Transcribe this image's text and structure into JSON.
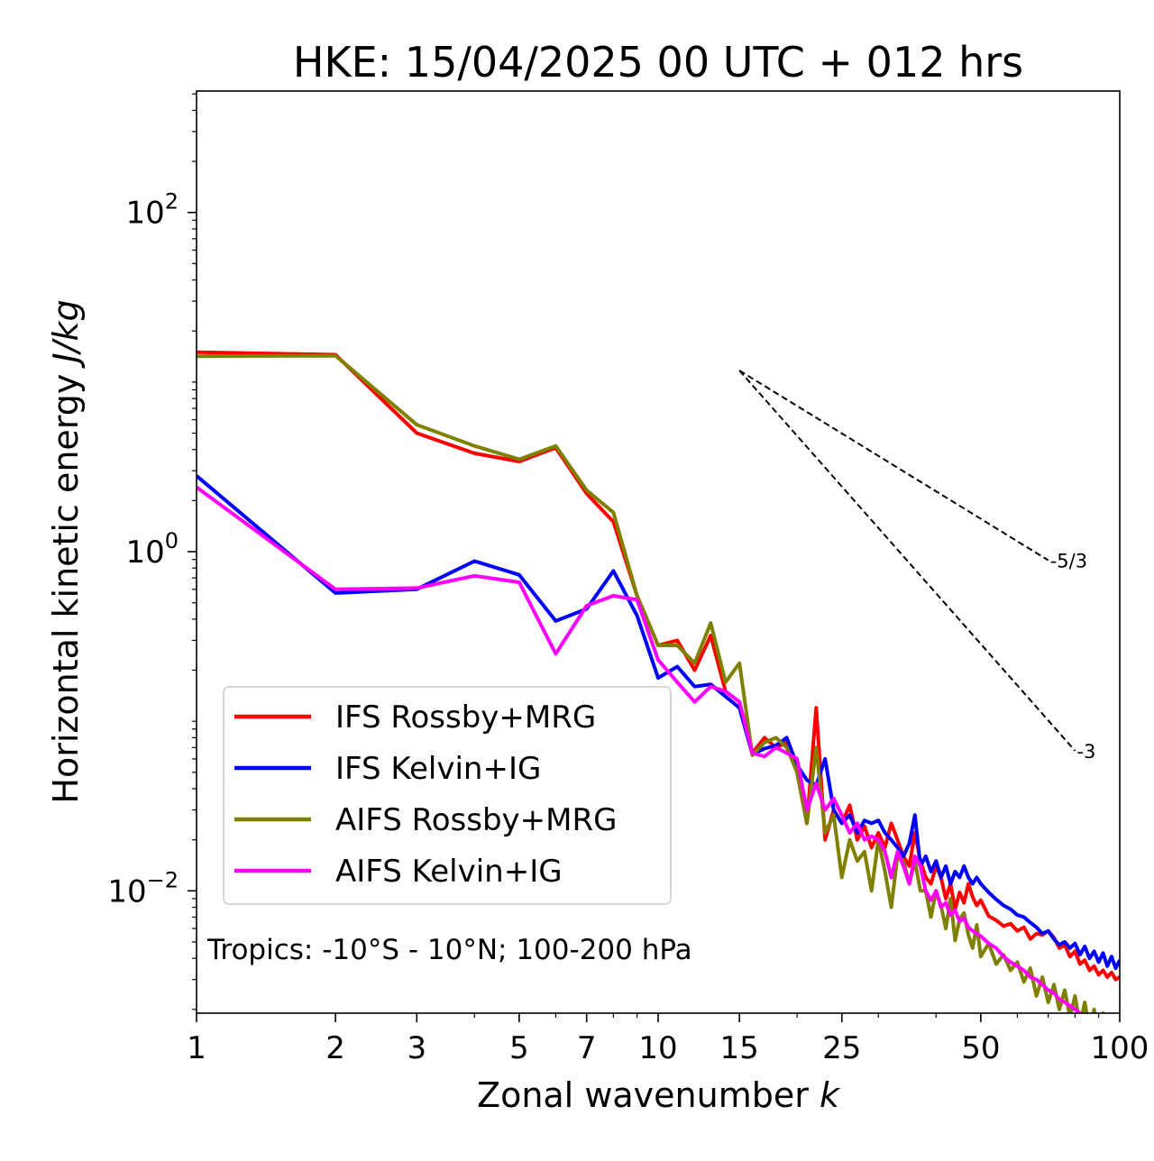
{
  "chart_data": {
    "type": "line",
    "title": "HKE: 15/04/2025 00 UTC + 012 hrs",
    "xlabel": "Zonal wavenumber",
    "xlabel_symbol": "k",
    "ylabel": "Horizontal kinetic energy",
    "ylabel_unit": "J/kg",
    "x_scale": "log",
    "y_scale": "log",
    "xlim": [
      1,
      100
    ],
    "ylim": [
      0.0019,
      520
    ],
    "x_ticks": [
      {
        "value": 1,
        "label": "1"
      },
      {
        "value": 2,
        "label": "2"
      },
      {
        "value": 3,
        "label": "3"
      },
      {
        "value": 5,
        "label": "5"
      },
      {
        "value": 7,
        "label": "7"
      },
      {
        "value": 10,
        "label": "10"
      },
      {
        "value": 15,
        "label": "15"
      },
      {
        "value": 25,
        "label": "25"
      },
      {
        "value": 50,
        "label": "50"
      },
      {
        "value": 100,
        "label": "100"
      }
    ],
    "y_ticks": [
      {
        "value": 0.01,
        "base": "10",
        "exp": "−2"
      },
      {
        "value": 1,
        "base": "10",
        "exp": "0"
      },
      {
        "value": 100,
        "base": "10",
        "exp": "2"
      }
    ],
    "annotation": "Tropics: -10°S - 10°N; 100-200 hPa",
    "reference_lines": [
      {
        "label": "-5/3",
        "x0": 15,
        "y0": 11.7,
        "x1": 70,
        "y1": 0.89
      },
      {
        "label": "-3",
        "x0": 15,
        "y0": 11.7,
        "x1": 80,
        "y1": 0.067
      }
    ],
    "legend_position": "lower-left",
    "series": [
      {
        "name": "IFS Rossby+MRG",
        "color": "#ff0000",
        "x": [
          1,
          2,
          3,
          4,
          5,
          6,
          7,
          8,
          9,
          10,
          11,
          12,
          13,
          14,
          15,
          16,
          17,
          18,
          19,
          20,
          21,
          22,
          23,
          24,
          25,
          26,
          27,
          28,
          29,
          30,
          31,
          32,
          33,
          34,
          35,
          36,
          37,
          38,
          39,
          40,
          41,
          42,
          43,
          44,
          45,
          46,
          47,
          48,
          49,
          50,
          52,
          54,
          56,
          58,
          60,
          62,
          64,
          66,
          68,
          70,
          72,
          74,
          76,
          78,
          80,
          82,
          84,
          86,
          88,
          90,
          92,
          94,
          96,
          98,
          100
        ],
        "y": [
          15,
          14.5,
          5,
          3.8,
          3.4,
          4.1,
          2.2,
          1.5,
          0.55,
          0.28,
          0.3,
          0.2,
          0.32,
          0.15,
          0.13,
          0.065,
          0.08,
          0.07,
          0.075,
          0.05,
          0.025,
          0.12,
          0.02,
          0.03,
          0.025,
          0.032,
          0.02,
          0.024,
          0.018,
          0.022,
          0.018,
          0.025,
          0.02,
          0.016,
          0.014,
          0.022,
          0.015,
          0.012,
          0.011,
          0.014,
          0.012,
          0.009,
          0.011,
          0.0078,
          0.0098,
          0.0085,
          0.011,
          0.0092,
          0.0082,
          0.0088,
          0.0071,
          0.0067,
          0.0062,
          0.0064,
          0.0058,
          0.0061,
          0.0052,
          0.0056,
          0.0055,
          0.0058,
          0.0053,
          0.0046,
          0.0048,
          0.0041,
          0.0044,
          0.0037,
          0.0039,
          0.0034,
          0.0036,
          0.0032,
          0.0034,
          0.0031,
          0.0033,
          0.003,
          0.0031
        ]
      },
      {
        "name": "IFS Kelvin+IG",
        "color": "#0000ff",
        "x": [
          1,
          2,
          3,
          4,
          5,
          6,
          7,
          8,
          9,
          10,
          11,
          12,
          13,
          14,
          15,
          16,
          17,
          18,
          19,
          20,
          21,
          22,
          23,
          24,
          25,
          26,
          27,
          28,
          29,
          30,
          31,
          32,
          33,
          34,
          35,
          36,
          37,
          38,
          39,
          40,
          41,
          42,
          43,
          44,
          45,
          46,
          47,
          48,
          49,
          50,
          52,
          54,
          56,
          58,
          60,
          62,
          64,
          66,
          68,
          70,
          72,
          74,
          76,
          78,
          80,
          82,
          84,
          86,
          88,
          90,
          92,
          94,
          96,
          98,
          100
        ],
        "y": [
          2.8,
          0.57,
          0.6,
          0.88,
          0.73,
          0.39,
          0.46,
          0.77,
          0.42,
          0.18,
          0.21,
          0.16,
          0.165,
          0.14,
          0.12,
          0.064,
          0.069,
          0.072,
          0.08,
          0.055,
          0.045,
          0.042,
          0.06,
          0.03,
          0.025,
          0.028,
          0.022,
          0.026,
          0.025,
          0.026,
          0.022,
          0.02,
          0.018,
          0.016,
          0.019,
          0.028,
          0.014,
          0.016,
          0.013,
          0.015,
          0.012,
          0.014,
          0.011,
          0.013,
          0.012,
          0.014,
          0.012,
          0.011,
          0.012,
          0.011,
          0.0098,
          0.0089,
          0.0082,
          0.0078,
          0.0072,
          0.007,
          0.0065,
          0.0061,
          0.0056,
          0.0058,
          0.0052,
          0.0048,
          0.005,
          0.0046,
          0.0049,
          0.0042,
          0.0047,
          0.004,
          0.0044,
          0.0038,
          0.0043,
          0.0036,
          0.0041,
          0.0035,
          0.0039
        ]
      },
      {
        "name": "AIFS Rossby+MRG",
        "color": "#808000",
        "x": [
          1,
          2,
          3,
          4,
          5,
          6,
          7,
          8,
          9,
          10,
          11,
          12,
          13,
          14,
          15,
          16,
          17,
          18,
          19,
          20,
          21,
          22,
          23,
          24,
          25,
          26,
          27,
          28,
          29,
          30,
          31,
          32,
          33,
          34,
          35,
          36,
          37,
          38,
          39,
          40,
          41,
          42,
          43,
          44,
          45,
          46,
          47,
          48,
          49,
          50,
          52,
          54,
          56,
          58,
          60,
          62,
          64,
          66,
          68,
          70,
          72,
          74,
          76,
          78,
          80,
          82,
          84,
          86,
          88,
          90,
          92,
          94,
          96,
          98,
          100
        ],
        "y": [
          14.2,
          14.3,
          5.6,
          4.2,
          3.5,
          4.2,
          2.3,
          1.7,
          0.55,
          0.28,
          0.28,
          0.22,
          0.38,
          0.17,
          0.22,
          0.063,
          0.075,
          0.08,
          0.07,
          0.05,
          0.025,
          0.07,
          0.022,
          0.028,
          0.012,
          0.02,
          0.015,
          0.017,
          0.01,
          0.02,
          0.013,
          0.008,
          0.016,
          0.015,
          0.011,
          0.015,
          0.01,
          0.01,
          0.007,
          0.01,
          0.0082,
          0.006,
          0.009,
          0.0051,
          0.0068,
          0.0074,
          0.0055,
          0.0046,
          0.0063,
          0.0041,
          0.0049,
          0.0037,
          0.0042,
          0.0034,
          0.0038,
          0.0029,
          0.0035,
          0.0024,
          0.0031,
          0.0022,
          0.0028,
          0.002,
          0.0026,
          0.0018,
          0.0024,
          0.0016,
          0.0022,
          0.0015,
          0.002,
          0.0014,
          0.0019,
          0.0013,
          0.0017,
          0.0012,
          0.0016
        ]
      },
      {
        "name": "AIFS Kelvin+IG",
        "color": "#ff00ff",
        "x": [
          1,
          2,
          3,
          4,
          5,
          6,
          7,
          8,
          9,
          10,
          11,
          12,
          13,
          14,
          15,
          16,
          17,
          18,
          19,
          20,
          21,
          22,
          23,
          24,
          25,
          26,
          27,
          28,
          29,
          30,
          31,
          32,
          33,
          34,
          35,
          36,
          37,
          38,
          39,
          40,
          41,
          42,
          43,
          44,
          45,
          46,
          47,
          48,
          49,
          50,
          52,
          54,
          56,
          58,
          60,
          62,
          64,
          66,
          68,
          70,
          72,
          74,
          76,
          78,
          80,
          82,
          84,
          86,
          88,
          90,
          92,
          94,
          96,
          98,
          100
        ],
        "y": [
          2.4,
          0.6,
          0.61,
          0.72,
          0.66,
          0.25,
          0.48,
          0.55,
          0.52,
          0.23,
          0.17,
          0.13,
          0.16,
          0.15,
          0.13,
          0.065,
          0.062,
          0.07,
          0.065,
          0.06,
          0.03,
          0.043,
          0.03,
          0.035,
          0.028,
          0.022,
          0.025,
          0.02,
          0.021,
          0.02,
          0.017,
          0.012,
          0.017,
          0.014,
          0.011,
          0.016,
          0.014,
          0.01,
          0.0088,
          0.01,
          0.008,
          0.0085,
          0.0072,
          0.0077,
          0.0066,
          0.0069,
          0.0061,
          0.0058,
          0.0056,
          0.0054,
          0.0049,
          0.0046,
          0.0041,
          0.0038,
          0.0036,
          0.0034,
          0.0031,
          0.003,
          0.0028,
          0.0026,
          0.0025,
          0.0023,
          0.0022,
          0.0021,
          0.002,
          0.0019,
          0.0018,
          0.0017,
          0.00165,
          0.0016,
          0.0015,
          0.00145,
          0.0014,
          0.00135,
          0.0013
        ]
      }
    ]
  }
}
